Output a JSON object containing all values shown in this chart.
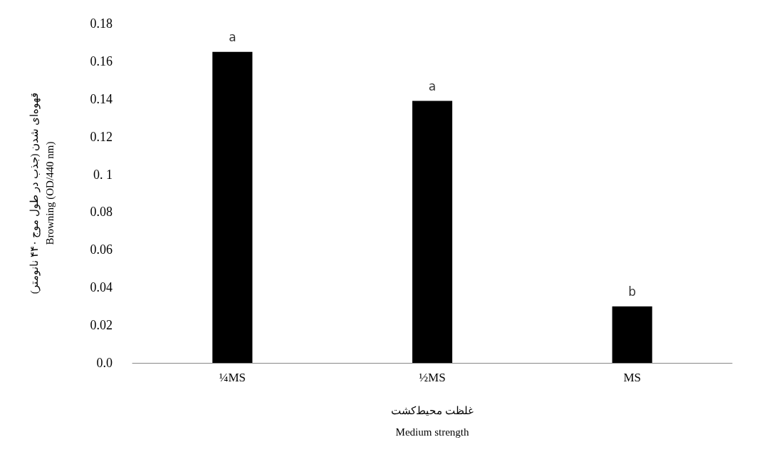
{
  "chart_data": {
    "type": "bar",
    "ylabel": "قهوه‌ای شدن (جذب در طول موج ۴۴۰ نانومتر)\nBrowning (OD/440 nm)",
    "xlabel": "غلظت محیط‌کشت\nMedium strength",
    "categories": [
      "¼MS",
      "½MS",
      "MS"
    ],
    "values": [
      0.165,
      0.139,
      0.03
    ],
    "color": "#000000",
    "ylim": [
      0,
      0.18
    ],
    "yticks": [
      {
        "value": 0,
        "label": "0.0"
      },
      0.02,
      0.04,
      0.06,
      0.08,
      {
        "value": 0.1,
        "label": "0. 1"
      },
      0.12,
      0.14,
      0.16,
      0.18
    ],
    "annotations": [
      {
        "text": "a",
        "x": "¼MS",
        "y": 0.165
      },
      {
        "text": "a",
        "x": "½MS",
        "y": 0.139
      },
      {
        "text": "b",
        "x": "MS",
        "y": 0.03
      }
    ],
    "grid": false
  }
}
